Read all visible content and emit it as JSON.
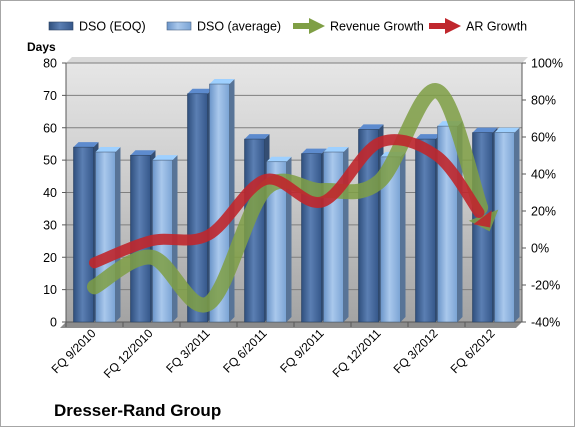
{
  "chart_data": {
    "type": "bar",
    "title": "Dresser-Rand Group",
    "ylabel": "Days",
    "categories": [
      "FQ 9/2010",
      "FQ 12/2010",
      "FQ 3/2011",
      "FQ 6/2011",
      "FQ 9/2011",
      "FQ 12/2011",
      "FQ 3/2012",
      "FQ 6/2012"
    ],
    "ylim": [
      0,
      80
    ],
    "y_ticks": [
      "0",
      "10",
      "20",
      "30",
      "40",
      "50",
      "60",
      "70",
      "80"
    ],
    "y2lim": [
      -40,
      100
    ],
    "y2_ticks": [
      "-40%",
      "-20%",
      "0%",
      "20%",
      "40%",
      "60%",
      "80%",
      "100%"
    ],
    "grid": true,
    "legend_position": "top",
    "series": [
      {
        "name": "DSO (EOQ)",
        "kind": "bar",
        "axis": "left",
        "color": "#4a6fa5",
        "values": [
          54,
          51.5,
          70.5,
          56.5,
          52,
          59.5,
          56.5,
          58.5
        ]
      },
      {
        "name": "DSO (average)",
        "kind": "bar",
        "axis": "left",
        "color": "#7ea6d8",
        "values": [
          52.5,
          50,
          73.5,
          49.5,
          52.5,
          51,
          60.5,
          58.5
        ]
      },
      {
        "name": "Revenue Growth",
        "kind": "arrow-line",
        "axis": "right",
        "color": "#7f9f45",
        "values": [
          -21,
          -5,
          -30,
          32,
          31,
          36,
          85,
          12
        ]
      },
      {
        "name": "AR Growth",
        "kind": "arrow-line",
        "axis": "right",
        "color": "#c0272d",
        "values": [
          -8,
          4,
          7,
          37,
          25,
          57,
          50,
          13
        ]
      }
    ]
  }
}
